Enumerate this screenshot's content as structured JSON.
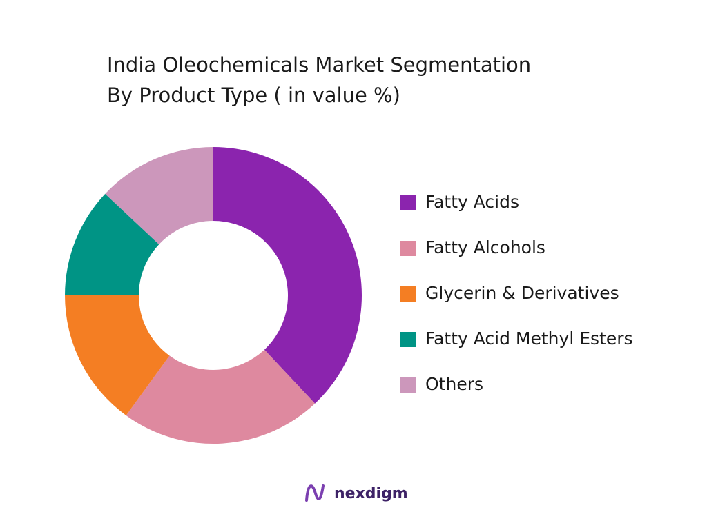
{
  "chart_data": {
    "type": "donut",
    "title": [
      "India Oleochemicals Market Segmentation",
      "By Product Type ( in value %)"
    ],
    "categories": [
      "Fatty Acids",
      "Fatty Alcohols",
      "Glycerin & Derivatives",
      "Fatty Acid Methyl Esters",
      "Others"
    ],
    "values": [
      38,
      22,
      15,
      12,
      13
    ],
    "colors": [
      "#8b24ae",
      "#de899f",
      "#f47e23",
      "#009485",
      "#cc97bb"
    ],
    "legend": "right"
  },
  "brand": "nexdigm"
}
